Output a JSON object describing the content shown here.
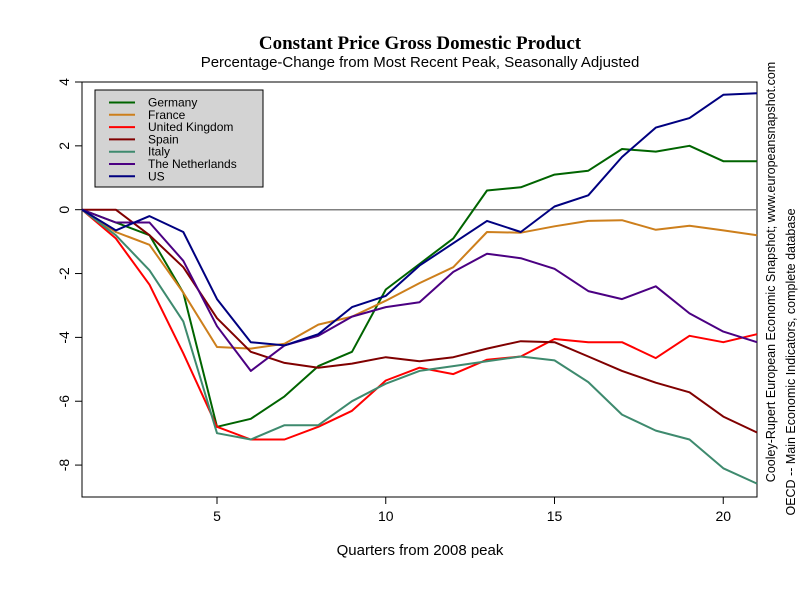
{
  "chart_data": {
    "type": "line",
    "title": "Constant Price Gross Domestic Product",
    "subtitle": "Percentage-Change from Most Recent Peak, Seasonally Adjusted",
    "xlabel": "Quarters from 2008 peak",
    "ylabel": "",
    "xlim": [
      1,
      21
    ],
    "ylim": [
      -9,
      4
    ],
    "x_ticks": [
      5,
      10,
      15,
      20
    ],
    "y_ticks": [
      4,
      2,
      0,
      -2,
      -4,
      -6,
      -8
    ],
    "reference_line_y": 0,
    "legend_position": "top-left",
    "x": [
      1,
      2,
      3,
      4,
      5,
      6,
      7,
      8,
      9,
      10,
      11,
      12,
      13,
      14,
      15,
      16,
      17,
      18,
      19,
      20,
      21
    ],
    "series": [
      {
        "name": "Germany",
        "color": "#006400",
        "values": [
          0,
          -0.4,
          -0.8,
          -2.6,
          -6.8,
          -6.55,
          -5.85,
          -4.9,
          -4.45,
          -2.5,
          -1.7,
          -0.9,
          0.6,
          0.7,
          1.1,
          1.22,
          1.9,
          1.82,
          2.0,
          1.52,
          1.52
        ]
      },
      {
        "name": "France",
        "color": "#CD7F1C",
        "values": [
          0,
          -0.7,
          -1.1,
          -2.6,
          -4.3,
          -4.35,
          -4.2,
          -3.6,
          -3.35,
          -2.85,
          -2.3,
          -1.8,
          -0.7,
          -0.72,
          -0.52,
          -0.35,
          -0.33,
          -0.63,
          -0.5,
          -0.65,
          -0.8
        ]
      },
      {
        "name": "United Kingdom",
        "color": "#FF0000",
        "values": [
          0,
          -0.9,
          -2.35,
          -4.5,
          -6.8,
          -7.2,
          -7.2,
          -6.8,
          -6.3,
          -5.35,
          -4.95,
          -5.15,
          -4.7,
          -4.6,
          -4.05,
          -4.15,
          -4.15,
          -4.65,
          -3.95,
          -4.15,
          -3.9
        ]
      },
      {
        "name": "Spain",
        "color": "#800000",
        "values": [
          0,
          0,
          -0.8,
          -1.8,
          -3.4,
          -4.45,
          -4.8,
          -4.95,
          -4.82,
          -4.62,
          -4.75,
          -4.62,
          -4.35,
          -4.12,
          -4.15,
          -4.6,
          -5.05,
          -5.42,
          -5.72,
          -6.48,
          -6.98
        ]
      },
      {
        "name": "Italy",
        "color": "#3E8A6E",
        "values": [
          0,
          -0.8,
          -1.9,
          -3.5,
          -7.0,
          -7.2,
          -6.75,
          -6.75,
          -6.0,
          -5.45,
          -5.05,
          -4.9,
          -4.75,
          -4.6,
          -4.72,
          -5.4,
          -6.42,
          -6.92,
          -7.2,
          -8.1,
          -8.58
        ]
      },
      {
        "name": "The Netherlands",
        "color": "#4B0082",
        "values": [
          0,
          -0.4,
          -0.4,
          -1.6,
          -3.65,
          -5.05,
          -4.25,
          -3.95,
          -3.35,
          -3.05,
          -2.9,
          -1.95,
          -1.38,
          -1.52,
          -1.85,
          -2.55,
          -2.8,
          -2.4,
          -3.25,
          -3.82,
          -4.15
        ]
      },
      {
        "name": "US",
        "color": "#000080",
        "values": [
          0,
          -0.65,
          -0.2,
          -0.7,
          -2.8,
          -4.15,
          -4.25,
          -3.9,
          -3.05,
          -2.7,
          -1.75,
          -1.05,
          -0.35,
          -0.7,
          0.1,
          0.45,
          1.65,
          2.57,
          2.87,
          3.6,
          3.65
        ]
      }
    ],
    "side_notes": [
      "Cooley-Rupert European Economic Snapshot; www.europeansnapshot.com",
      "OECD -- Main Economic Indicators, complete database"
    ]
  }
}
